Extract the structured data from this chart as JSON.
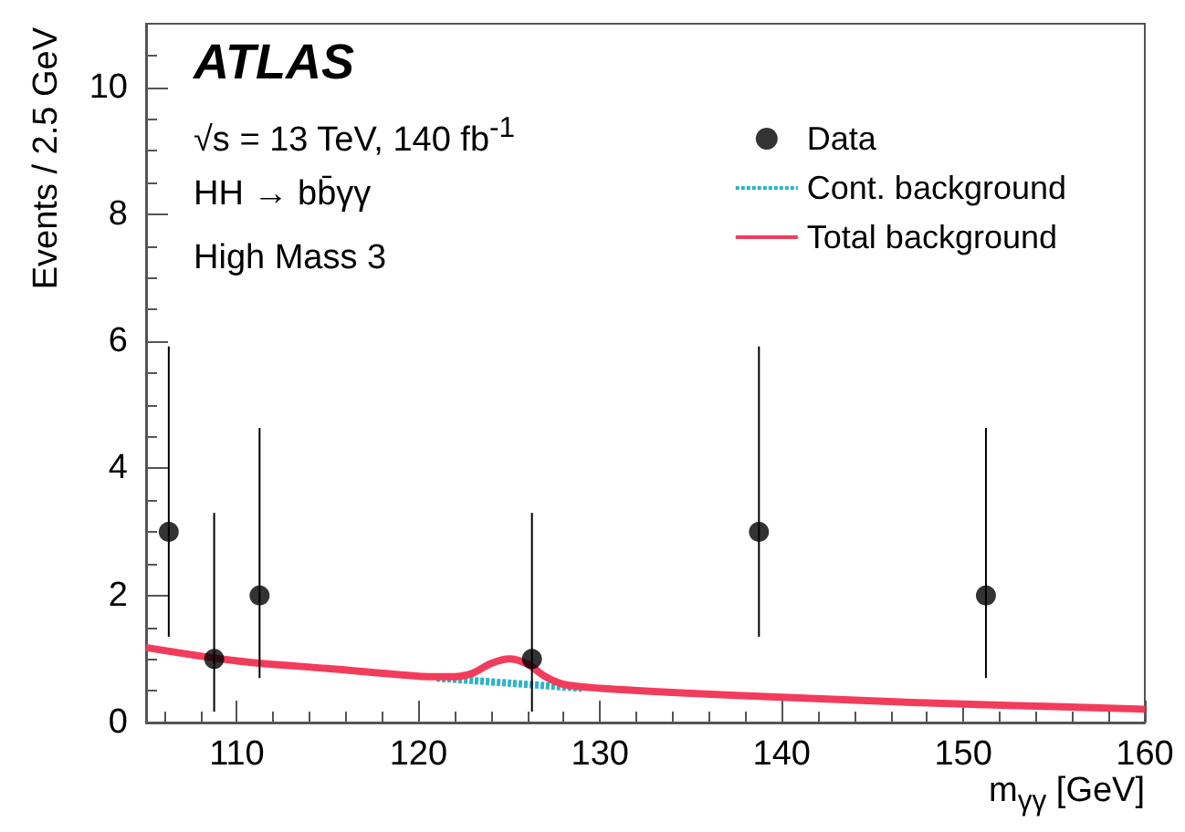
{
  "chart_data": {
    "type": "scatter",
    "xlabel": "m$_{γγ}$ [GeV]",
    "ylabel": "Events / 2.5 GeV",
    "annotations": [
      "ATLAS",
      "√s = 13 TeV, 140 fb$^{-1}$",
      "HH → bb̄γγ",
      "High Mass 3"
    ],
    "xlim": [
      105,
      160
    ],
    "xticks": [
      110,
      120,
      130,
      140,
      150,
      160
    ],
    "ylim": [
      0,
      11
    ],
    "yticks": [
      0,
      2,
      4,
      6,
      8,
      10
    ],
    "grid": false,
    "legend": "top right",
    "series": [
      {
        "name": "Data",
        "type": "scatter",
        "marker": "circle",
        "color": "#000000",
        "x": [
          106.25,
          108.75,
          111.25,
          126.25,
          138.75,
          151.25
        ],
        "values": [
          3,
          1,
          2,
          1,
          3,
          2
        ],
        "errors": [
          [
            1.35,
            5.92
          ],
          [
            0.17,
            3.3
          ],
          [
            0.7,
            4.64
          ],
          [
            0.17,
            3.3
          ],
          [
            1.35,
            5.92
          ],
          [
            0.7,
            4.64
          ]
        ]
      },
      {
        "name": "Cont. background",
        "type": "line",
        "line_style": "dotted",
        "color": "#2fb3c3",
        "x": [
          121,
          123,
          125,
          127,
          129
        ],
        "values": [
          0.7,
          0.66,
          0.62,
          0.58,
          0.54
        ]
      },
      {
        "name": "Total background",
        "type": "line",
        "line_style": "solid",
        "color": "#f23c5c",
        "x": [
          105,
          110,
          115,
          120,
          122,
          123,
          124,
          125,
          126,
          127,
          128,
          130,
          135,
          140,
          145,
          150,
          155,
          160
        ],
        "values": [
          1.18,
          0.97,
          0.85,
          0.73,
          0.72,
          0.78,
          0.93,
          1.0,
          0.92,
          0.72,
          0.6,
          0.54,
          0.46,
          0.4,
          0.34,
          0.29,
          0.25,
          0.21
        ]
      }
    ]
  }
}
